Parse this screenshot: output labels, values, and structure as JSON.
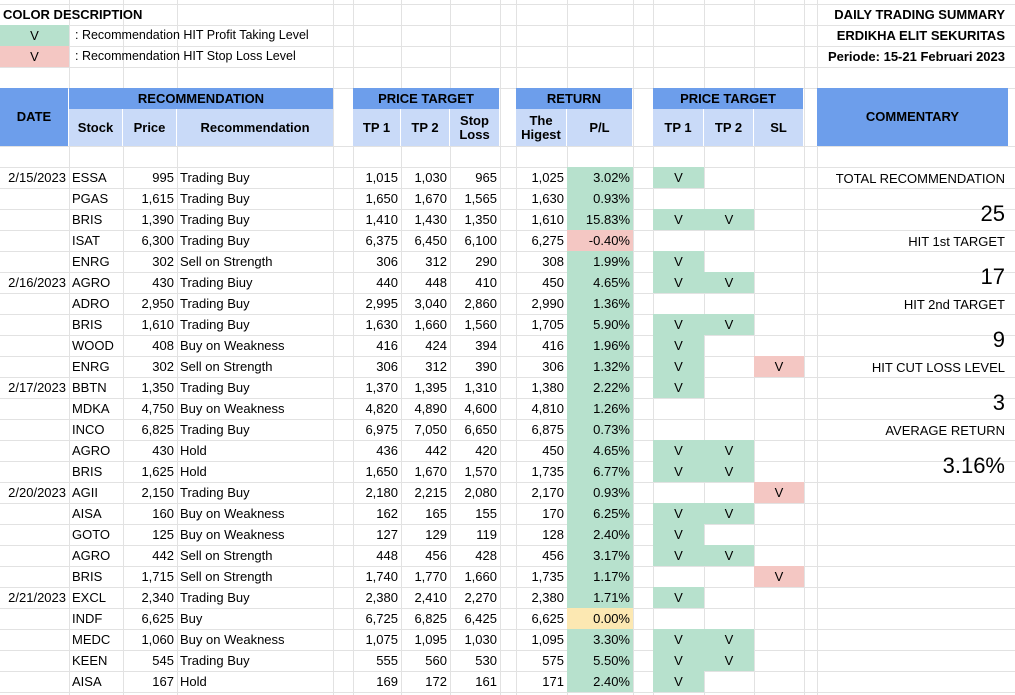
{
  "color_description": {
    "title": "COLOR DESCRIPTION",
    "items": [
      {
        "mark": "V",
        "text": ": Recommendation HIT Profit Taking Level",
        "color": "#b7e1cd"
      },
      {
        "mark": "V",
        "text": ": Recommendation HIT Stop Loss Level",
        "color": "#f4c7c3"
      }
    ]
  },
  "summary": {
    "title": "DAILY TRADING SUMMARY",
    "company": "ERDIKHA ELIT SEKURITAS",
    "period": "Periode: 15-21  Februari 2023"
  },
  "headers": {
    "date": "DATE",
    "recommendation": "RECOMMENDATION",
    "stock": "Stock",
    "price": "Price",
    "rec": "Recommendation",
    "price_target": "PRICE TARGET",
    "tp1": "TP 1",
    "tp2": "TP 2",
    "stop_loss": "Stop Loss",
    "return": "RETURN",
    "highest": "The Higest",
    "pl": "P/L",
    "price_target2": "PRICE TARGET",
    "hit_tp1": "TP 1",
    "hit_tp2": "TP 2",
    "hit_sl": "SL",
    "commentary": "COMMENTARY"
  },
  "commentary": {
    "total_label": "TOTAL RECOMMENDATION",
    "total_value": "25",
    "hit1_label": "HIT 1st TARGET",
    "hit1_value": "17",
    "hit2_label": "HIT 2nd TARGET",
    "hit2_value": "9",
    "cut_label": "HIT CUT LOSS LEVEL",
    "cut_value": "3",
    "avg_label": "AVERAGE RETURN",
    "avg_value": "3.16%"
  },
  "colors": {
    "header_dark": "#6d9eeb",
    "header_light": "#c9daf8",
    "hit_green": "#b7e1cd",
    "hit_red": "#f4c7c3",
    "neutral_yellow": "#fce8b2"
  },
  "rows": [
    {
      "date": "2/15/2023",
      "stock": "ESSA",
      "price": "995",
      "rec": "Trading Buy",
      "tp1": "1,015",
      "tp2": "1,030",
      "sl": "965",
      "high": "1,025",
      "pl": "3.02%",
      "pl_color": "green",
      "h1": "V",
      "h2": "",
      "hs": ""
    },
    {
      "date": "",
      "stock": "PGAS",
      "price": "1,615",
      "rec": "Trading Buy",
      "tp1": "1,650",
      "tp2": "1,670",
      "sl": "1,565",
      "high": "1,630",
      "pl": "0.93%",
      "pl_color": "green",
      "h1": "",
      "h2": "",
      "hs": ""
    },
    {
      "date": "",
      "stock": "BRIS",
      "price": "1,390",
      "rec": "Trading Buy",
      "tp1": "1,410",
      "tp2": "1,430",
      "sl": "1,350",
      "high": "1,610",
      "pl": "15.83%",
      "pl_color": "green",
      "h1": "V",
      "h2": "V",
      "hs": ""
    },
    {
      "date": "",
      "stock": "ISAT",
      "price": "6,300",
      "rec": "Trading Buy",
      "tp1": "6,375",
      "tp2": "6,450",
      "sl": "6,100",
      "high": "6,275",
      "pl": "-0.40%",
      "pl_color": "red",
      "h1": "",
      "h2": "",
      "hs": ""
    },
    {
      "date": "",
      "stock": "ENRG",
      "price": "302",
      "rec": "Sell on Strength",
      "tp1": "306",
      "tp2": "312",
      "sl": "290",
      "high": "308",
      "pl": "1.99%",
      "pl_color": "green",
      "h1": "V",
      "h2": "",
      "hs": ""
    },
    {
      "date": "2/16/2023",
      "stock": "AGRO",
      "price": "430",
      "rec": "Trading Biuy",
      "tp1": "440",
      "tp2": "448",
      "sl": "410",
      "high": "450",
      "pl": "4.65%",
      "pl_color": "green",
      "h1": "V",
      "h2": "V",
      "hs": ""
    },
    {
      "date": "",
      "stock": "ADRO",
      "price": "2,950",
      "rec": "Trading Buy",
      "tp1": "2,995",
      "tp2": "3,040",
      "sl": "2,860",
      "high": "2,990",
      "pl": "1.36%",
      "pl_color": "green",
      "h1": "",
      "h2": "",
      "hs": ""
    },
    {
      "date": "",
      "stock": "BRIS",
      "price": "1,610",
      "rec": "Trading Buy",
      "tp1": "1,630",
      "tp2": "1,660",
      "sl": "1,560",
      "high": "1,705",
      "pl": "5.90%",
      "pl_color": "green",
      "h1": "V",
      "h2": "V",
      "hs": ""
    },
    {
      "date": "",
      "stock": "WOOD",
      "price": "408",
      "rec": "Buy on Weakness",
      "tp1": "416",
      "tp2": "424",
      "sl": "394",
      "high": "416",
      "pl": "1.96%",
      "pl_color": "green",
      "h1": "V",
      "h2": "",
      "hs": ""
    },
    {
      "date": "",
      "stock": "ENRG",
      "price": "302",
      "rec": "Sell on Strength",
      "tp1": "306",
      "tp2": "312",
      "sl": "390",
      "high": "306",
      "pl": "1.32%",
      "pl_color": "green",
      "h1": "V",
      "h2": "",
      "hs": "V"
    },
    {
      "date": "2/17/2023",
      "stock": "BBTN",
      "price": "1,350",
      "rec": "Trading Buy",
      "tp1": "1,370",
      "tp2": "1,395",
      "sl": "1,310",
      "high": "1,380",
      "pl": "2.22%",
      "pl_color": "green",
      "h1": "V",
      "h2": "",
      "hs": ""
    },
    {
      "date": "",
      "stock": "MDKA",
      "price": "4,750",
      "rec": "Buy on Weakness",
      "tp1": "4,820",
      "tp2": "4,890",
      "sl": "4,600",
      "high": "4,810",
      "pl": "1.26%",
      "pl_color": "green",
      "h1": "",
      "h2": "",
      "hs": ""
    },
    {
      "date": "",
      "stock": "INCO",
      "price": "6,825",
      "rec": "Trading Buy",
      "tp1": "6,975",
      "tp2": "7,050",
      "sl": "6,650",
      "high": "6,875",
      "pl": "0.73%",
      "pl_color": "green",
      "h1": "",
      "h2": "",
      "hs": ""
    },
    {
      "date": "",
      "stock": "AGRO",
      "price": "430",
      "rec": "Hold",
      "tp1": "436",
      "tp2": "442",
      "sl": "420",
      "high": "450",
      "pl": "4.65%",
      "pl_color": "green",
      "h1": "V",
      "h2": "V",
      "hs": ""
    },
    {
      "date": "",
      "stock": "BRIS",
      "price": "1,625",
      "rec": "Hold",
      "tp1": "1,650",
      "tp2": "1,670",
      "sl": "1,570",
      "high": "1,735",
      "pl": "6.77%",
      "pl_color": "green",
      "h1": "V",
      "h2": "V",
      "hs": ""
    },
    {
      "date": "2/20/2023",
      "stock": "AGII",
      "price": "2,150",
      "rec": "Trading Buy",
      "tp1": "2,180",
      "tp2": "2,215",
      "sl": "2,080",
      "high": "2,170",
      "pl": "0.93%",
      "pl_color": "green",
      "h1": "",
      "h2": "",
      "hs": "V"
    },
    {
      "date": "",
      "stock": "AISA",
      "price": "160",
      "rec": "Buy on Weakness",
      "tp1": "162",
      "tp2": "165",
      "sl": "155",
      "high": "170",
      "pl": "6.25%",
      "pl_color": "green",
      "h1": "V",
      "h2": "V",
      "hs": ""
    },
    {
      "date": "",
      "stock": "GOTO",
      "price": "125",
      "rec": "Buy on Weakness",
      "tp1": "127",
      "tp2": "129",
      "sl": "119",
      "high": "128",
      "pl": "2.40%",
      "pl_color": "green",
      "h1": "V",
      "h2": "",
      "hs": ""
    },
    {
      "date": "",
      "stock": "AGRO",
      "price": "442",
      "rec": "Sell on Strength",
      "tp1": "448",
      "tp2": "456",
      "sl": "428",
      "high": "456",
      "pl": "3.17%",
      "pl_color": "green",
      "h1": "V",
      "h2": "V",
      "hs": ""
    },
    {
      "date": "",
      "stock": "BRIS",
      "price": "1,715",
      "rec": "Sell on Strength",
      "tp1": "1,740",
      "tp2": "1,770",
      "sl": "1,660",
      "high": "1,735",
      "pl": "1.17%",
      "pl_color": "green",
      "h1": "",
      "h2": "",
      "hs": "V"
    },
    {
      "date": "2/21/2023",
      "stock": "EXCL",
      "price": "2,340",
      "rec": "Trading Buy",
      "tp1": "2,380",
      "tp2": "2,410",
      "sl": "2,270",
      "high": "2,380",
      "pl": "1.71%",
      "pl_color": "green",
      "h1": "V",
      "h2": "",
      "hs": ""
    },
    {
      "date": "",
      "stock": "INDF",
      "price": "6,625",
      "rec": "Buy",
      "tp1": "6,725",
      "tp2": "6,825",
      "sl": "6,425",
      "high": "6,625",
      "pl": "0.00%",
      "pl_color": "yellow",
      "h1": "",
      "h2": "",
      "hs": ""
    },
    {
      "date": "",
      "stock": "MEDC",
      "price": "1,060",
      "rec": "Buy on Weakness",
      "tp1": "1,075",
      "tp2": "1,095",
      "sl": "1,030",
      "high": "1,095",
      "pl": "3.30%",
      "pl_color": "green",
      "h1": "V",
      "h2": "V",
      "hs": ""
    },
    {
      "date": "",
      "stock": "KEEN",
      "price": "545",
      "rec": "Trading Buy",
      "tp1": "555",
      "tp2": "560",
      "sl": "530",
      "high": "575",
      "pl": "5.50%",
      "pl_color": "green",
      "h1": "V",
      "h2": "V",
      "hs": ""
    },
    {
      "date": "",
      "stock": "AISA",
      "price": "167",
      "rec": "Hold",
      "tp1": "169",
      "tp2": "172",
      "sl": "161",
      "high": "171",
      "pl": "2.40%",
      "pl_color": "green",
      "h1": "V",
      "h2": "",
      "hs": ""
    }
  ]
}
